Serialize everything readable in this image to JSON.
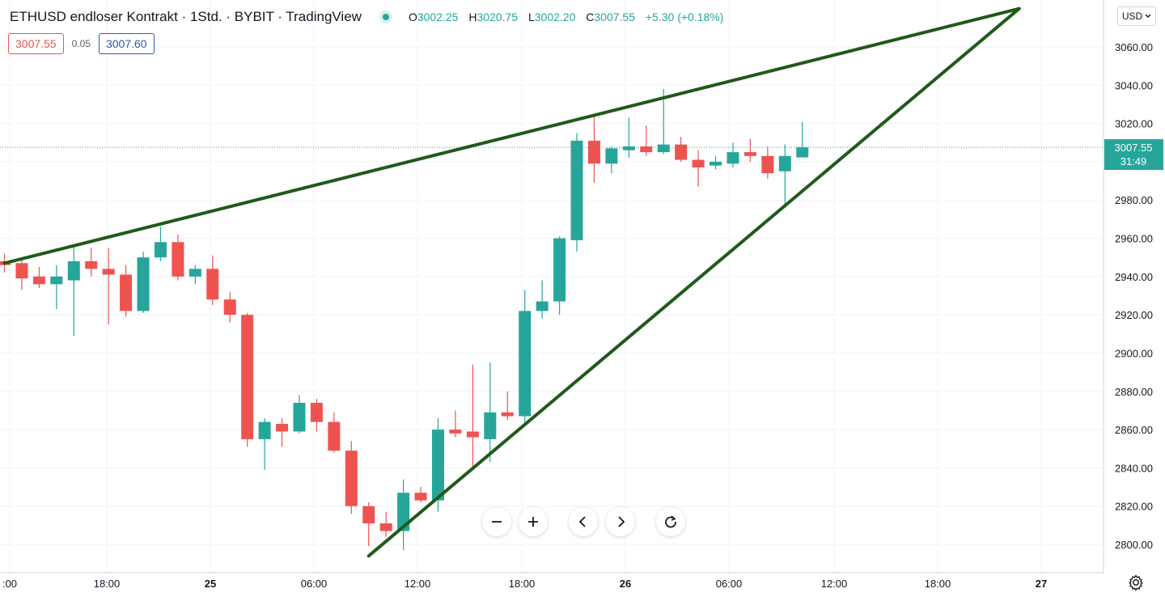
{
  "legend": {
    "title": "ETHUSD endloser Kontrakt · 1Std. · BYBIT · TradingView",
    "open_label": "O",
    "open": "3002.25",
    "high_label": "H",
    "high": "3020.75",
    "low_label": "L",
    "low": "3002.20",
    "close_label": "C",
    "close": "3007.55",
    "change": "+5.30 (+0.18%)"
  },
  "quotes": {
    "sell": "3007.55",
    "spread": "0.05",
    "buy": "3007.60"
  },
  "currency_selector": "USD",
  "price_label": {
    "price": "3007.55",
    "countdown": "31:49"
  },
  "colors": {
    "up": "#26a69a",
    "down": "#ef5350",
    "trendline": "#1f5a1a",
    "grid": "#f0f3fa"
  },
  "icons": {
    "zoom_out": "minus-icon",
    "zoom_in": "plus-icon",
    "scroll_left": "chevron-left-icon",
    "scroll_right": "chevron-right-icon",
    "reset": "reset-icon",
    "settings": "gear-icon"
  },
  "chart_data": {
    "type": "candlestick",
    "symbol": "ETHUSD",
    "interval": "1h",
    "y_ticks": [
      "3060.00",
      "3040.00",
      "3020.00",
      "3000.00",
      "2980.00",
      "2960.00",
      "2940.00",
      "2920.00",
      "2900.00",
      "2880.00",
      "2860.00",
      "2840.00",
      "2820.00",
      "2800.00"
    ],
    "ylim": [
      2790,
      3080
    ],
    "x_ticks": [
      ":00",
      "18:00",
      "25",
      "06:00",
      "12:00",
      "18:00",
      "26",
      "06:00",
      "12:00",
      "18:00",
      "27"
    ],
    "candles": [
      {
        "o": 2948,
        "h": 2952,
        "l": 2942,
        "c": 2946
      },
      {
        "o": 2947,
        "h": 2950,
        "l": 2933,
        "c": 2939
      },
      {
        "o": 2940,
        "h": 2945,
        "l": 2934,
        "c": 2936
      },
      {
        "o": 2936,
        "h": 2946,
        "l": 2923,
        "c": 2940
      },
      {
        "o": 2938,
        "h": 2957,
        "l": 2909,
        "c": 2948
      },
      {
        "o": 2948,
        "h": 2955,
        "l": 2940,
        "c": 2944
      },
      {
        "o": 2944,
        "h": 2955,
        "l": 2915,
        "c": 2941
      },
      {
        "o": 2941,
        "h": 2946,
        "l": 2919,
        "c": 2922
      },
      {
        "o": 2922,
        "h": 2953,
        "l": 2921,
        "c": 2950
      },
      {
        "o": 2950,
        "h": 2966,
        "l": 2948,
        "c": 2958
      },
      {
        "o": 2958,
        "h": 2962,
        "l": 2938,
        "c": 2940
      },
      {
        "o": 2940,
        "h": 2946,
        "l": 2936,
        "c": 2944
      },
      {
        "o": 2944,
        "h": 2951,
        "l": 2925,
        "c": 2928
      },
      {
        "o": 2928,
        "h": 2932,
        "l": 2916,
        "c": 2920
      },
      {
        "o": 2920,
        "h": 2921,
        "l": 2851,
        "c": 2855
      },
      {
        "o": 2855,
        "h": 2866,
        "l": 2839,
        "c": 2864
      },
      {
        "o": 2863,
        "h": 2866,
        "l": 2851,
        "c": 2859
      },
      {
        "o": 2859,
        "h": 2878,
        "l": 2858,
        "c": 2874
      },
      {
        "o": 2874,
        "h": 2876,
        "l": 2859,
        "c": 2864
      },
      {
        "o": 2864,
        "h": 2869,
        "l": 2848,
        "c": 2849
      },
      {
        "o": 2849,
        "h": 2854,
        "l": 2816,
        "c": 2820
      },
      {
        "o": 2820,
        "h": 2822,
        "l": 2799,
        "c": 2811
      },
      {
        "o": 2811,
        "h": 2817,
        "l": 2804,
        "c": 2807
      },
      {
        "o": 2807,
        "h": 2834,
        "l": 2797,
        "c": 2827
      },
      {
        "o": 2827,
        "h": 2830,
        "l": 2822,
        "c": 2823
      },
      {
        "o": 2823,
        "h": 2866,
        "l": 2817,
        "c": 2860
      },
      {
        "o": 2860,
        "h": 2870,
        "l": 2856,
        "c": 2858
      },
      {
        "o": 2859,
        "h": 2894,
        "l": 2839,
        "c": 2856
      },
      {
        "o": 2855,
        "h": 2895,
        "l": 2843,
        "c": 2869
      },
      {
        "o": 2869,
        "h": 2880,
        "l": 2865,
        "c": 2867
      },
      {
        "o": 2867,
        "h": 2933,
        "l": 2863,
        "c": 2922
      },
      {
        "o": 2922,
        "h": 2938,
        "l": 2918,
        "c": 2927
      },
      {
        "o": 2927,
        "h": 2961,
        "l": 2920,
        "c": 2960
      },
      {
        "o": 2959,
        "h": 3015,
        "l": 2953,
        "c": 3011
      },
      {
        "o": 3011,
        "h": 3024,
        "l": 2989,
        "c": 2999
      },
      {
        "o": 2999,
        "h": 3008,
        "l": 2994,
        "c": 3007
      },
      {
        "o": 3006,
        "h": 3023,
        "l": 3002,
        "c": 3008
      },
      {
        "o": 3008,
        "h": 3019,
        "l": 3003,
        "c": 3005
      },
      {
        "o": 3005,
        "h": 3038,
        "l": 3004,
        "c": 3009
      },
      {
        "o": 3009,
        "h": 3013,
        "l": 3000,
        "c": 3001
      },
      {
        "o": 3001,
        "h": 3006,
        "l": 2987,
        "c": 2997
      },
      {
        "o": 2998,
        "h": 3003,
        "l": 2996,
        "c": 3000
      },
      {
        "o": 2999,
        "h": 3010,
        "l": 2997,
        "c": 3005
      },
      {
        "o": 3005,
        "h": 3012,
        "l": 3000,
        "c": 3003
      },
      {
        "o": 3003,
        "h": 3008,
        "l": 2991,
        "c": 2994
      },
      {
        "o": 2995,
        "h": 3009,
        "l": 2977,
        "c": 3003
      },
      {
        "o": 3002.25,
        "h": 3020.75,
        "l": 3002.2,
        "c": 3007.55
      }
    ],
    "trendlines": [
      {
        "from": {
          "bar": 0,
          "price": 2947
        },
        "to": {
          "bar": 58.5,
          "price": 3080
        }
      },
      {
        "from": {
          "bar": 21,
          "price": 2794
        },
        "to": {
          "bar": 58.5,
          "price": 3080
        }
      }
    ],
    "last_price": 3007.55
  }
}
